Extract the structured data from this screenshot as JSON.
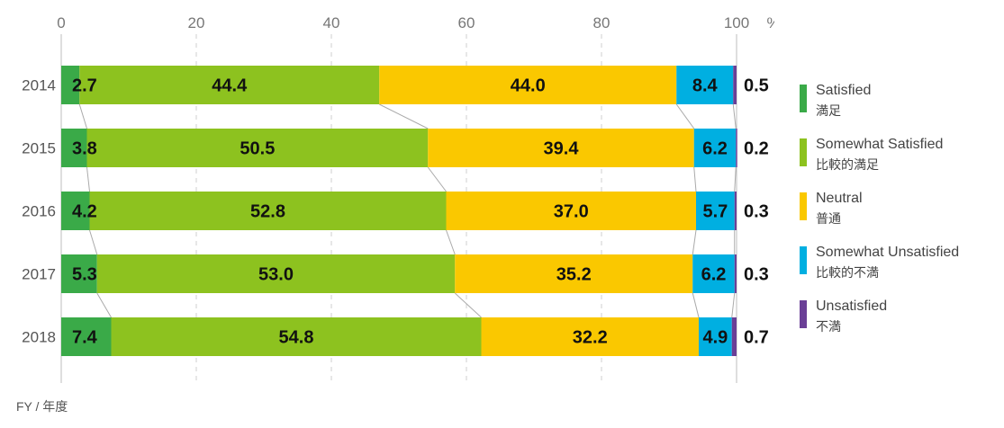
{
  "chart_data": {
    "type": "bar",
    "orientation": "horizontal-stacked",
    "categories": [
      "2014",
      "2015",
      "2016",
      "2017",
      "2018"
    ],
    "series": [
      {
        "name": "Satisfied",
        "name_jp": "満足",
        "color": "#3aaa48",
        "values": [
          2.7,
          3.8,
          4.2,
          5.3,
          7.4
        ]
      },
      {
        "name": "Somewhat Satisfied",
        "name_jp": "比較的満足",
        "color": "#8dc21f",
        "values": [
          44.4,
          50.5,
          52.8,
          53.0,
          54.8
        ]
      },
      {
        "name": "Neutral",
        "name_jp": "普通",
        "color": "#fac800",
        "values": [
          44.0,
          39.4,
          37.0,
          35.2,
          32.2
        ]
      },
      {
        "name": "Somewhat Unsatisfied",
        "name_jp": "比較的不満",
        "color": "#00afe1",
        "values": [
          8.4,
          6.2,
          5.7,
          6.2,
          4.9
        ]
      },
      {
        "name": "Unsatisfied",
        "name_jp": "不満",
        "color": "#6a3f96",
        "values": [
          0.5,
          0.2,
          0.3,
          0.3,
          0.7
        ]
      }
    ],
    "x_ticks": [
      "0",
      "20",
      "40",
      "60",
      "80",
      "100"
    ],
    "x_unit": "%",
    "xlim": [
      0,
      100
    ],
    "grid": "vertical dashed",
    "legend_position": "right",
    "footer": "FY / 年度"
  }
}
